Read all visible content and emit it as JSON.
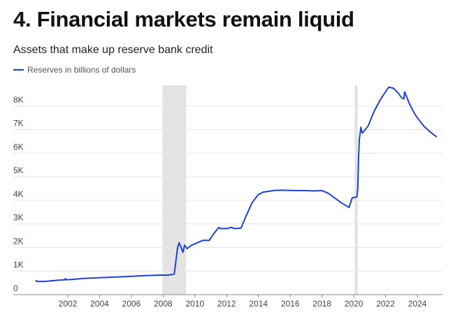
{
  "title": "4. Financial markets remain liquid",
  "subtitle": "Assets that make up reserve bank credit",
  "colors": {
    "series": "#1f3fe0",
    "recession": "#e3e3e3",
    "grid": "#e6e6e6",
    "axis": "#888888"
  },
  "chart_data": {
    "type": "line",
    "title": "4. Financial markets remain liquid",
    "subtitle": "Assets that make up reserve bank credit",
    "legend_position": "top-left",
    "grid": true,
    "xlim": [
      1999.4,
      2025.7
    ],
    "ylim": [
      0,
      9000
    ],
    "x_ticks": [
      2002,
      2004,
      2006,
      2008,
      2010,
      2012,
      2014,
      2016,
      2018,
      2020,
      2022,
      2024
    ],
    "x_tick_labels": [
      "2002",
      "2004",
      "2006",
      "2008",
      "2010",
      "2012",
      "2014",
      "2016",
      "2018",
      "2020",
      "2022",
      "2024"
    ],
    "y_ticks": [
      0,
      1000,
      2000,
      3000,
      4000,
      5000,
      6000,
      7000,
      8000
    ],
    "y_tick_labels": [
      "0",
      "1K",
      "2K",
      "3K",
      "4K",
      "5K",
      "6K",
      "7K",
      "8K"
    ],
    "shaded_periods": [
      {
        "start": 2007.95,
        "end": 2009.45
      },
      {
        "start": 2020.05,
        "end": 2020.25
      }
    ],
    "series": [
      {
        "name": "Reserves in billions of dollars",
        "x": [
          2000.0,
          2000.05,
          2000.5,
          2001.0,
          2001.5,
          2001.8,
          2001.85,
          2001.9,
          2002.5,
          2003.0,
          2004.0,
          2005.0,
          2006.0,
          2007.0,
          2007.8,
          2008.3,
          2008.6,
          2008.7,
          2008.9,
          2009.0,
          2009.1,
          2009.25,
          2009.35,
          2009.5,
          2009.8,
          2010.5,
          2010.9,
          2011.2,
          2011.5,
          2011.6,
          2012.0,
          2012.3,
          2012.5,
          2012.9,
          2013.2,
          2013.6,
          2014.0,
          2014.3,
          2014.6,
          2015.0,
          2015.5,
          2016.0,
          2016.5,
          2017.0,
          2017.5,
          2018.0,
          2018.4,
          2018.8,
          2019.2,
          2019.7,
          2019.8,
          2019.9,
          2020.2,
          2020.25,
          2020.3,
          2020.35,
          2020.45,
          2020.5,
          2020.55,
          2020.6,
          2020.9,
          2021.3,
          2021.7,
          2022.0,
          2022.2,
          2022.5,
          2022.8,
          2023.0,
          2023.15,
          2023.2,
          2023.5,
          2023.8,
          2024.0,
          2024.4,
          2024.8,
          2025.1,
          2025.2
        ],
        "values": [
          600,
          560,
          560,
          590,
          620,
          630,
          680,
          630,
          660,
          690,
          720,
          750,
          780,
          810,
          830,
          830,
          860,
          880,
          1950,
          2200,
          2050,
          1800,
          2100,
          1950,
          2100,
          2300,
          2300,
          2600,
          2850,
          2800,
          2800,
          2850,
          2800,
          2820,
          3300,
          3900,
          4250,
          4350,
          4380,
          4420,
          4430,
          4420,
          4410,
          4410,
          4400,
          4410,
          4300,
          4100,
          3900,
          3700,
          3900,
          4100,
          4150,
          4500,
          5800,
          6600,
          7100,
          6900,
          6850,
          6900,
          7150,
          7800,
          8300,
          8600,
          8800,
          8750,
          8550,
          8350,
          8300,
          8600,
          8100,
          7700,
          7500,
          7150,
          6900,
          6750,
          6700
        ]
      }
    ]
  }
}
